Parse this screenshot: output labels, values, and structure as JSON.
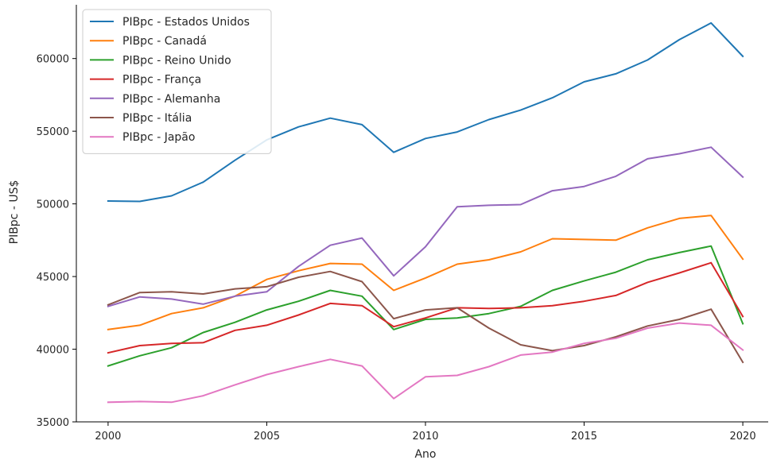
{
  "chart_data": {
    "type": "line",
    "xlabel": "Ano",
    "ylabel": "PIBpc - US$",
    "xlim": [
      1999.0,
      2020.8
    ],
    "ylim": [
      35000,
      63700
    ],
    "xticks": [
      2000,
      2005,
      2010,
      2015,
      2020
    ],
    "yticks": [
      35000,
      40000,
      45000,
      50000,
      55000,
      60000
    ],
    "grid": false,
    "legend_position": "top-left",
    "x": [
      2000,
      2001,
      2002,
      2003,
      2004,
      2005,
      2006,
      2007,
      2008,
      2009,
      2010,
      2011,
      2012,
      2013,
      2014,
      2015,
      2016,
      2017,
      2018,
      2019,
      2020
    ],
    "series": [
      {
        "name": "PIBpc - Estados Unidos",
        "color": "#1f77b4",
        "values": [
          50200,
          50170,
          50550,
          51500,
          53000,
          54400,
          55300,
          55900,
          55450,
          53550,
          54500,
          54950,
          55800,
          56450,
          57300,
          58400,
          58950,
          59900,
          61300,
          62450,
          60150
        ]
      },
      {
        "name": "PIBpc - Canadá",
        "color": "#ff7f0e",
        "values": [
          41350,
          41650,
          42450,
          42850,
          43650,
          44800,
          45400,
          45900,
          45850,
          44050,
          44900,
          45850,
          46150,
          46700,
          47600,
          47550,
          47500,
          48350,
          49000,
          49200,
          46200
        ]
      },
      {
        "name": "PIBpc - Reino Unido",
        "color": "#2ca02c",
        "values": [
          38850,
          39550,
          40100,
          41150,
          41850,
          42700,
          43300,
          44050,
          43650,
          41350,
          42050,
          42150,
          42450,
          42950,
          44050,
          44700,
          45300,
          46150,
          46650,
          47100,
          41750
        ]
      },
      {
        "name": "PIBpc - França",
        "color": "#d62728",
        "values": [
          39750,
          40250,
          40400,
          40450,
          41300,
          41650,
          42350,
          43150,
          43000,
          41550,
          42150,
          42850,
          42800,
          42850,
          43000,
          43300,
          43700,
          44600,
          45250,
          45950,
          42250
        ]
      },
      {
        "name": "PIBpc - Alemanha",
        "color": "#9467bd",
        "values": [
          42950,
          43600,
          43450,
          43100,
          43650,
          43950,
          45700,
          47150,
          47650,
          45050,
          47050,
          49800,
          49900,
          49950,
          50900,
          51200,
          51900,
          53100,
          53450,
          53900,
          51850
        ]
      },
      {
        "name": "PIBpc - Itália",
        "color": "#8c564b",
        "values": [
          43050,
          43900,
          43950,
          43800,
          44150,
          44300,
          44950,
          45350,
          44650,
          42100,
          42700,
          42850,
          41450,
          40300,
          39900,
          40250,
          40850,
          41600,
          42050,
          42750,
          39100
        ]
      },
      {
        "name": "PIBpc - Japão",
        "color": "#e377c2",
        "values": [
          36350,
          36400,
          36350,
          36800,
          37550,
          38250,
          38800,
          39300,
          38850,
          36600,
          38100,
          38200,
          38800,
          39600,
          39800,
          40400,
          40750,
          41450,
          41800,
          41650,
          39950
        ]
      }
    ]
  }
}
